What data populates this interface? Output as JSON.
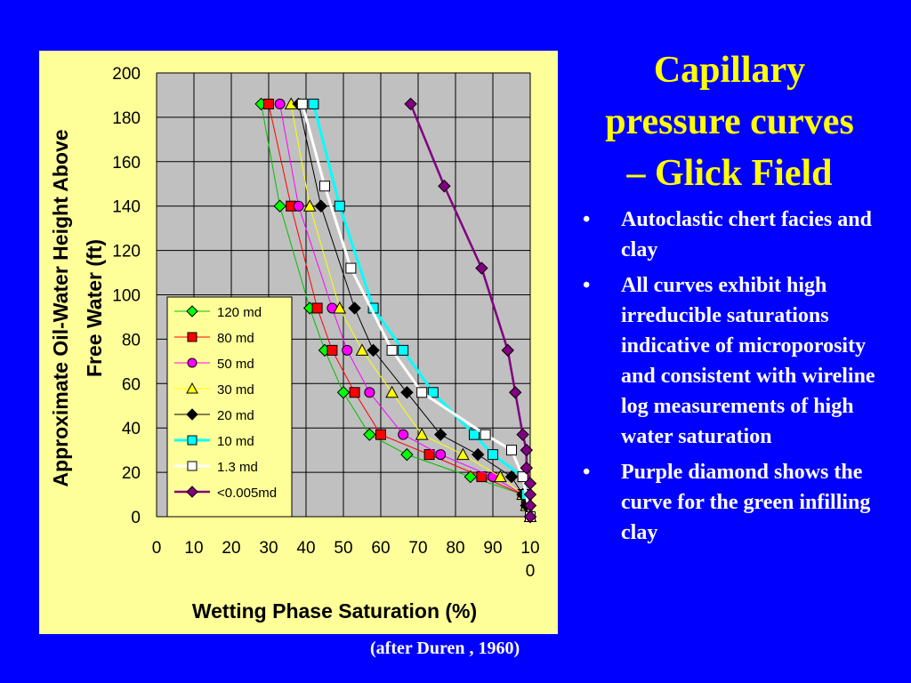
{
  "slide": {
    "title_lines": [
      "Capillary",
      "pressure curves",
      "– Glick Field"
    ],
    "bullets": [
      "Autoclastic chert facies and clay",
      "All curves exhibit high irreducible saturations indicative of microporosity and consistent with wireline log measurements of high water saturation",
      "Purple diamond shows the curve for the green infilling clay"
    ],
    "bullet_marker": "•",
    "caption": "(after Duren , 1960)",
    "colors": {
      "background": "#0000ff",
      "title": "#ffff00",
      "text": "#ffffff",
      "chart_panel": "#ffff99",
      "plot_area": "#c0c0c0"
    }
  },
  "chart_data": {
    "type": "line",
    "ylabel_lines": [
      "Approximate Oil-Water Height Above",
      "Free Water (ft)"
    ],
    "xlabel": "Wetting Phase Saturation (%)",
    "xlim": [
      0,
      100
    ],
    "ylim": [
      0,
      200
    ],
    "x_tick_labels": [
      "0",
      "10",
      "20",
      "30",
      "40",
      "50",
      "60",
      "70",
      "80",
      "90",
      "10\n0"
    ],
    "y_tick_labels": [
      "0",
      "20",
      "40",
      "60",
      "80",
      "100",
      "120",
      "140",
      "160",
      "180",
      "200"
    ],
    "grid": true,
    "legend_position": "left-middle",
    "series": [
      {
        "name": "120 md",
        "color": "#00c000",
        "marker": "diamond",
        "marker_color": "#00ff00",
        "x": [
          28,
          33,
          41,
          45,
          50,
          57,
          67,
          84,
          98,
          99,
          100
        ],
        "y": [
          186,
          140,
          94,
          75,
          56,
          37,
          28,
          18,
          10,
          5,
          0
        ]
      },
      {
        "name": "80 md",
        "color": "#ff0000",
        "marker": "square",
        "marker_color": "#ff0000",
        "x": [
          30,
          36,
          43,
          47,
          53,
          60,
          73,
          87,
          98,
          99,
          100
        ],
        "y": [
          186,
          140,
          94,
          75,
          56,
          37,
          28,
          18,
          10,
          5,
          0
        ]
      },
      {
        "name": "50 md",
        "color": "#ff00ff",
        "marker": "circle",
        "marker_color": "#ff00ff",
        "x": [
          33,
          38,
          47,
          51,
          57,
          66,
          76,
          90,
          98,
          99,
          100
        ],
        "y": [
          186,
          140,
          94,
          75,
          56,
          37,
          28,
          18,
          10,
          5,
          0
        ]
      },
      {
        "name": "30 md",
        "color": "#ffff00",
        "marker": "triangle",
        "marker_color": "#ffff00",
        "x": [
          36,
          41,
          49,
          55,
          63,
          71,
          82,
          92,
          98,
          99,
          100
        ],
        "y": [
          186,
          140,
          94,
          75,
          56,
          37,
          28,
          18,
          10,
          5,
          0
        ]
      },
      {
        "name": "20 md",
        "color": "#000000",
        "marker": "diamond",
        "marker_color": "#000000",
        "x": [
          38,
          44,
          53,
          58,
          67,
          76,
          86,
          95,
          98,
          99,
          100
        ],
        "y": [
          186,
          140,
          94,
          75,
          56,
          37,
          28,
          18,
          10,
          5,
          0
        ]
      },
      {
        "name": "10 md",
        "color": "#00ffff",
        "marker": "square",
        "marker_color": "#00ffff",
        "x": [
          42,
          49,
          58,
          66,
          74,
          85,
          90,
          98,
          99,
          100
        ],
        "y": [
          186,
          140,
          94,
          75,
          56,
          37,
          28,
          18,
          10,
          0
        ]
      },
      {
        "name": "1.3 md",
        "color": "#ffffff",
        "marker": "square",
        "marker_color": "#ffffff",
        "x": [
          39,
          45,
          52,
          63,
          71,
          88,
          95,
          98,
          100
        ],
        "y": [
          186,
          149,
          112,
          75,
          56,
          37,
          30,
          18,
          0
        ]
      },
      {
        "name": "<0.005md",
        "color": "#800080",
        "marker": "diamond",
        "marker_color": "#800080",
        "x": [
          68,
          77,
          87,
          94,
          96,
          98,
          99,
          99,
          100,
          100,
          100,
          100
        ],
        "y": [
          186,
          149,
          112,
          75,
          56,
          37,
          30,
          22,
          15,
          10,
          5,
          0
        ]
      }
    ]
  }
}
